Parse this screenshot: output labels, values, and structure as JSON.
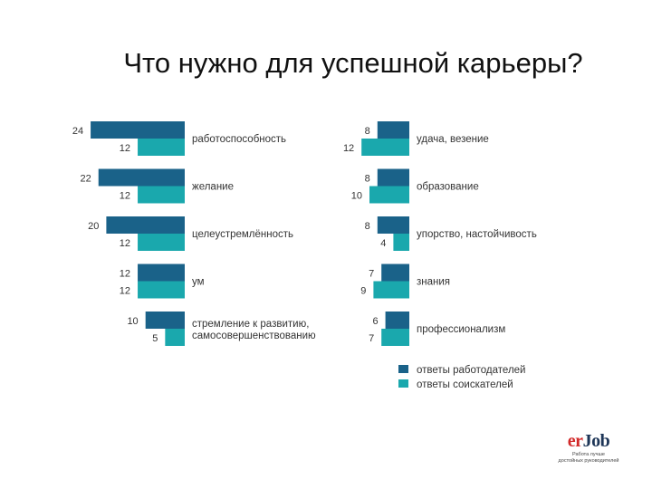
{
  "title": "Что нужно для успешной карьеры?",
  "chart_data": {
    "type": "bar",
    "orientation": "horizontal",
    "colors": {
      "employers": "#1a6289",
      "seekers": "#1aa8ad"
    },
    "legend": {
      "placement": "bottom-right",
      "items": [
        {
          "label": "ответы работодателей",
          "color": "#1a6289"
        },
        {
          "label": "ответы соискателей",
          "color": "#1aa8ad"
        }
      ]
    },
    "groups": [
      {
        "items": [
          {
            "label": [
              "работоспособность"
            ],
            "employers": 24,
            "seekers": 12
          },
          {
            "label": [
              "желание"
            ],
            "employers": 22,
            "seekers": 12
          },
          {
            "label": [
              "целеустремлённость"
            ],
            "employers": 20,
            "seekers": 12
          },
          {
            "label": [
              "ум"
            ],
            "employers": 12,
            "seekers": 12
          },
          {
            "label": [
              "стремление к развитию,",
              "самосовершенствованию"
            ],
            "employers": 10,
            "seekers": 5
          }
        ]
      },
      {
        "items": [
          {
            "label": [
              "удача, везение"
            ],
            "employers": 8,
            "seekers": 12
          },
          {
            "label": [
              "образование"
            ],
            "employers": 8,
            "seekers": 10
          },
          {
            "label": [
              "упорство, настойчивость"
            ],
            "employers": 8,
            "seekers": 4
          },
          {
            "label": [
              "знания"
            ],
            "employers": 7,
            "seekers": 9
          },
          {
            "label": [
              "профессионализм"
            ],
            "employers": 6,
            "seekers": 7
          }
        ]
      }
    ]
  },
  "logo": {
    "er": "er",
    "job": "Job",
    "tagline": [
      "Работа лучше",
      "достойных руководителей"
    ]
  }
}
